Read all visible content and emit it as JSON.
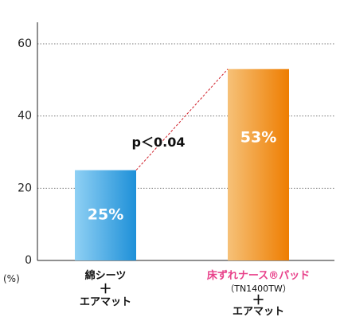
{
  "chart_data": {
    "type": "bar",
    "y_unit": "(%)",
    "ylim": [
      0,
      60
    ],
    "yticks": [
      0,
      20,
      40,
      60
    ],
    "grid": true,
    "categories": [
      {
        "label": "綿シーツ",
        "sub": "",
        "plus": "＋",
        "bottom": "エアマット"
      },
      {
        "label": "床ずれナース®パッド",
        "sub": "（TN1400TW）",
        "plus": "＋",
        "bottom": "エアマット"
      }
    ],
    "values": [
      25,
      53
    ],
    "value_labels": [
      "25%",
      "53%"
    ],
    "colors": {
      "bar1_top": "#1e90d8",
      "bar1_light": "#8fd0f4",
      "bar2_top": "#ee7d00",
      "bar2_light": "#f6c178",
      "highlight_label": "#e8418a",
      "connector": "#d0202a"
    },
    "annotation": "p＜0.04"
  }
}
